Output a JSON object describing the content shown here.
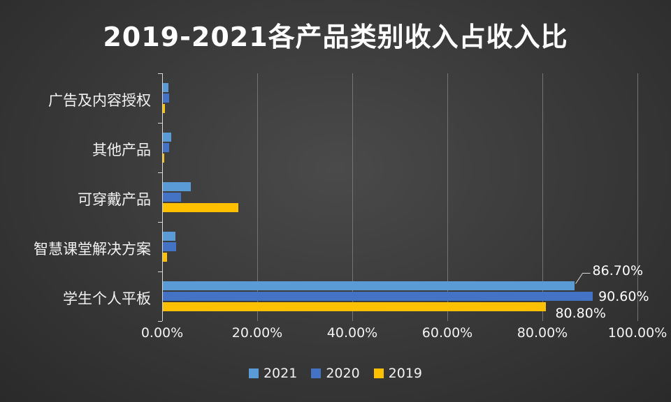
{
  "chart_data": {
    "type": "bar",
    "orientation": "horizontal",
    "title": "2019-2021各产品类别收入占收入比",
    "categories": [
      "广告及内容授权",
      "其他产品",
      "可穿戴产品",
      "智慧课堂解决方案",
      "学生个人平板"
    ],
    "series": [
      {
        "name": "2021",
        "color": "#5B9BD5",
        "values": [
          1.3,
          1.9,
          6.0,
          2.8,
          86.7
        ]
      },
      {
        "name": "2020",
        "color": "#4472C4",
        "values": [
          1.5,
          1.4,
          4.0,
          2.9,
          90.6
        ]
      },
      {
        "name": "2019",
        "color": "#FFC000",
        "values": [
          0.6,
          0.5,
          16.0,
          1.0,
          80.8
        ]
      }
    ],
    "x_axis": {
      "min": 0,
      "max": 100,
      "tick_values": [
        0,
        20,
        40,
        60,
        80,
        100
      ],
      "tick_labels": [
        "0.00%",
        "20.00%",
        "40.00%",
        "60.00%",
        "80.00%",
        "100.00%"
      ]
    },
    "value_labels": [
      {
        "series": "2021",
        "category": "学生个人平板",
        "text": "86.70%"
      },
      {
        "series": "2020",
        "category": "学生个人平板",
        "text": "90.60%"
      },
      {
        "series": "2019",
        "category": "学生个人平板",
        "text": "80.80%"
      }
    ],
    "legend": {
      "position": "bottom",
      "entries": [
        "2021",
        "2020",
        "2019"
      ]
    },
    "grid": true,
    "colors": {
      "background": "#3a3a3a",
      "gridline": "#757575",
      "axis": "#d9d9d9",
      "text": "#ffffff"
    }
  }
}
